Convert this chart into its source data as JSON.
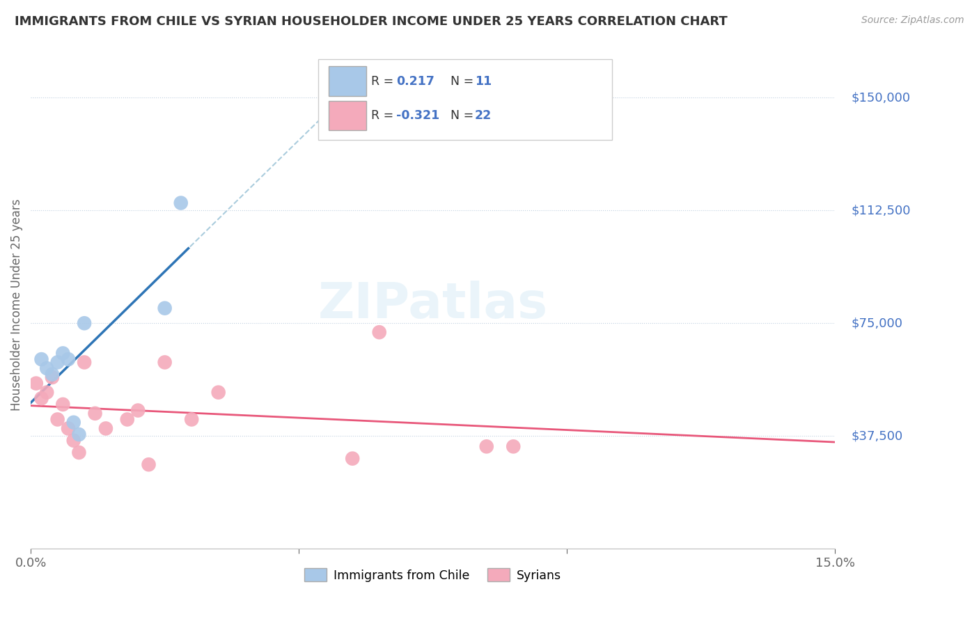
{
  "title": "IMMIGRANTS FROM CHILE VS SYRIAN HOUSEHOLDER INCOME UNDER 25 YEARS CORRELATION CHART",
  "source": "Source: ZipAtlas.com",
  "ylabel": "Householder Income Under 25 years",
  "xlim": [
    0.0,
    0.15
  ],
  "ylim": [
    0,
    162500
  ],
  "chile_R": 0.217,
  "chile_N": 11,
  "syrian_R": -0.321,
  "syrian_N": 22,
  "chile_color": "#a8c8e8",
  "syrian_color": "#f4aabb",
  "chile_line_color": "#2e75b6",
  "chile_dashed_color": "#aaccdd",
  "syrian_line_color": "#e8577a",
  "right_label_color": "#4472c4",
  "ytick_values": [
    37500,
    75000,
    112500,
    150000
  ],
  "ytick_labels": [
    "$37,500",
    "$75,000",
    "$112,500",
    "$150,000"
  ],
  "chile_x": [
    0.002,
    0.003,
    0.004,
    0.005,
    0.006,
    0.007,
    0.008,
    0.009,
    0.01,
    0.025,
    0.028
  ],
  "chile_y": [
    63000,
    60000,
    58000,
    62000,
    65000,
    63000,
    42000,
    38000,
    75000,
    80000,
    115000
  ],
  "syrian_x": [
    0.001,
    0.002,
    0.003,
    0.004,
    0.005,
    0.006,
    0.007,
    0.008,
    0.009,
    0.01,
    0.012,
    0.014,
    0.018,
    0.02,
    0.022,
    0.025,
    0.03,
    0.035,
    0.06,
    0.065,
    0.085,
    0.09
  ],
  "syrian_y": [
    55000,
    50000,
    52000,
    57000,
    43000,
    48000,
    40000,
    36000,
    32000,
    62000,
    45000,
    40000,
    43000,
    46000,
    28000,
    62000,
    43000,
    52000,
    30000,
    72000,
    34000,
    34000
  ]
}
